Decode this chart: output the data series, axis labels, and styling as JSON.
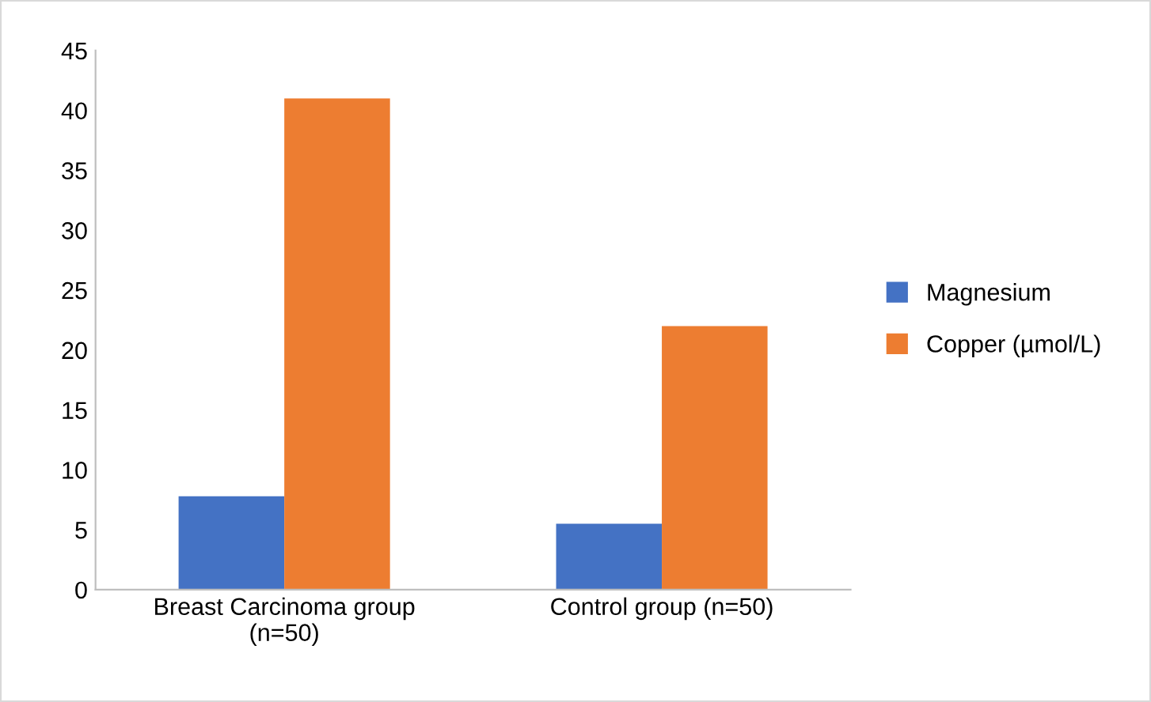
{
  "chart_data": {
    "type": "bar",
    "categories": [
      "Breast Carcinoma group\n(n=50)",
      "Control group (n=50)"
    ],
    "series": [
      {
        "name": "Magnesium",
        "color": "#4472c4",
        "values": [
          7.8,
          5.5
        ]
      },
      {
        "name": "Copper (µmol/L)",
        "color": "#ed7d31",
        "values": [
          41,
          22
        ]
      }
    ],
    "ylim": [
      0,
      45
    ],
    "yticks": [
      0,
      5,
      10,
      15,
      20,
      25,
      30,
      35,
      40,
      45
    ],
    "grid": false,
    "legend": "right"
  }
}
